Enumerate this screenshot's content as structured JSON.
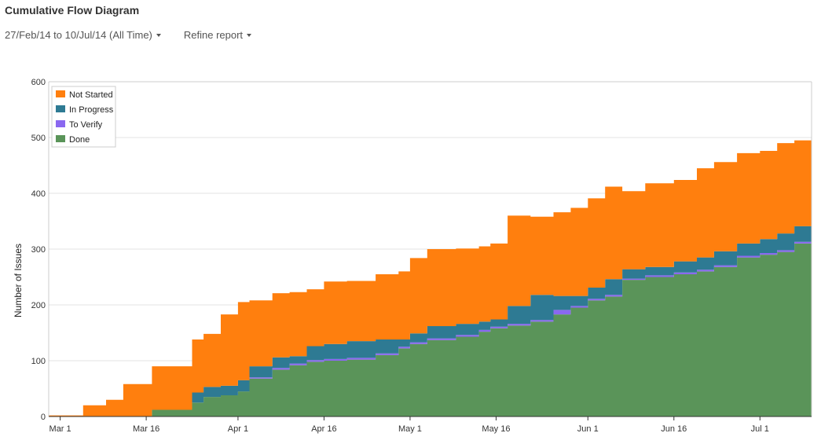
{
  "header": {
    "title": "Cumulative Flow Diagram"
  },
  "filters": {
    "date_range_label": "27/Feb/14 to 10/Jul/14 (All Time)",
    "refine_label": "Refine report"
  },
  "chart_data": {
    "type": "area",
    "stacked": true,
    "title": "",
    "ylabel": "Number of Issues",
    "xlabel": "",
    "ylim": [
      0,
      600
    ],
    "yticks": [
      0,
      100,
      200,
      300,
      400,
      500,
      600
    ],
    "xlim": [
      "2014-02-27",
      "2014-07-10"
    ],
    "xticks": [
      {
        "date": "2014-03-01",
        "label": "Mar 1"
      },
      {
        "date": "2014-03-16",
        "label": "Mar 16"
      },
      {
        "date": "2014-04-01",
        "label": "Apr 1"
      },
      {
        "date": "2014-04-16",
        "label": "Apr 16"
      },
      {
        "date": "2014-05-01",
        "label": "May 1"
      },
      {
        "date": "2014-05-16",
        "label": "May 16"
      },
      {
        "date": "2014-06-01",
        "label": "Jun 1"
      },
      {
        "date": "2014-06-16",
        "label": "Jun 16"
      },
      {
        "date": "2014-07-01",
        "label": "Jul 1"
      }
    ],
    "grid": "horizontal",
    "legend_position": "top-left",
    "x": [
      "2014-02-27",
      "2014-03-05",
      "2014-03-07",
      "2014-03-09",
      "2014-03-12",
      "2014-03-17",
      "2014-03-20",
      "2014-03-24",
      "2014-03-26",
      "2014-03-29",
      "2014-04-01",
      "2014-04-03",
      "2014-04-07",
      "2014-04-10",
      "2014-04-13",
      "2014-04-16",
      "2014-04-20",
      "2014-04-25",
      "2014-04-29",
      "2014-05-01",
      "2014-05-04",
      "2014-05-09",
      "2014-05-13",
      "2014-05-15",
      "2014-05-18",
      "2014-05-22",
      "2014-05-26",
      "2014-05-29",
      "2014-06-01",
      "2014-06-04",
      "2014-06-07",
      "2014-06-11",
      "2014-06-16",
      "2014-06-20",
      "2014-06-23",
      "2014-06-27",
      "2014-07-01",
      "2014-07-04",
      "2014-07-07",
      "2014-07-10"
    ],
    "series": [
      {
        "name": "Done",
        "color": "#5a9459",
        "values": [
          0,
          0,
          0,
          0,
          0,
          12,
          12,
          25,
          35,
          38,
          45,
          68,
          84,
          92,
          98,
          100,
          102,
          110,
          122,
          130,
          137,
          143,
          152,
          158,
          163,
          170,
          183,
          195,
          208,
          215,
          245,
          250,
          255,
          260,
          268,
          285,
          290,
          295,
          310,
          322
        ]
      },
      {
        "name": "To Verify",
        "color": "#8a68f0",
        "values": [
          0,
          0,
          0,
          0,
          0,
          0,
          0,
          0,
          0,
          0,
          0,
          2,
          3,
          3,
          3,
          3,
          3,
          3,
          3,
          3,
          3,
          3,
          3,
          3,
          3,
          3,
          8,
          3,
          3,
          3,
          2,
          3,
          3,
          3,
          3,
          3,
          3,
          3,
          3,
          3
        ]
      },
      {
        "name": "In Progress",
        "color": "#2e7a93",
        "values": [
          0,
          0,
          0,
          0,
          0,
          0,
          0,
          18,
          18,
          17,
          20,
          20,
          19,
          13,
          25,
          27,
          30,
          25,
          13,
          16,
          22,
          20,
          15,
          13,
          32,
          45,
          25,
          18,
          20,
          28,
          17,
          15,
          20,
          22,
          25,
          22,
          25,
          30,
          28,
          35
        ]
      },
      {
        "name": "Not Started",
        "color": "#ff7f0e",
        "values": [
          2,
          20,
          20,
          30,
          58,
          78,
          78,
          95,
          95,
          128,
          140,
          118,
          115,
          115,
          102,
          112,
          108,
          117,
          122,
          135,
          138,
          135,
          135,
          136,
          162,
          140,
          150,
          158,
          160,
          166,
          140,
          150,
          146,
          160,
          160,
          162,
          158,
          162,
          154,
          185
        ]
      }
    ],
    "legend": [
      "Not Started",
      "In Progress",
      "To Verify",
      "Done"
    ]
  }
}
